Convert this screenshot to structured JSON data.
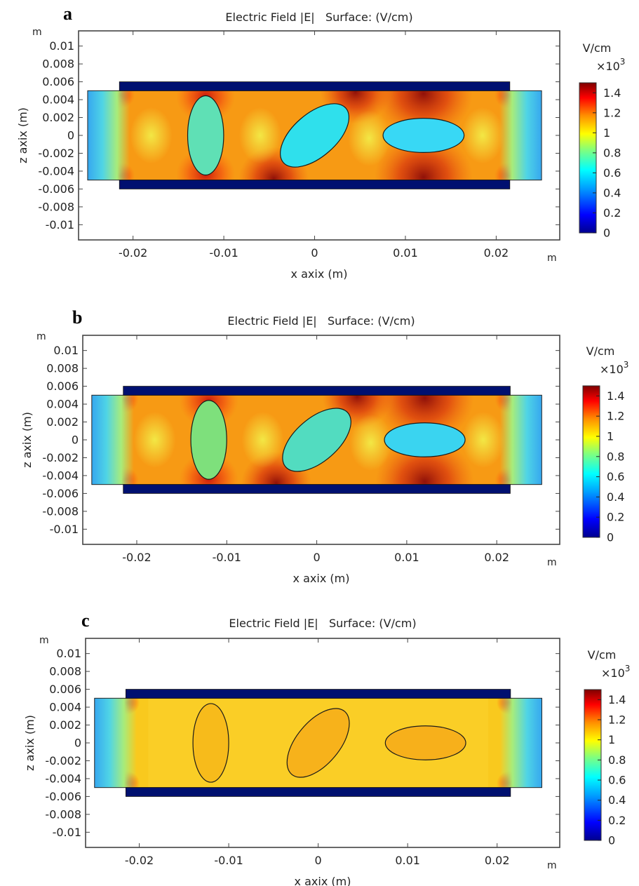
{
  "panels": [
    {
      "letter": "a",
      "title": "Electric Field |E|   Surface: (V/cm)",
      "colorbar": {
        "unit": "V/cm",
        "multiplier_base": "×10",
        "multiplier_exp": "3",
        "ticks": [
          "1.4",
          "1.2",
          "1",
          "0.8",
          "0.6",
          "0.4",
          "0.2",
          "0"
        ]
      },
      "inclusion_fill": [
        "#5fe0b5",
        "#2fe0ec",
        "#38d8f5"
      ]
    },
    {
      "letter": "b",
      "title": "Electric Field |E|   Surface: (V/cm)",
      "colorbar": {
        "unit": "V/cm",
        "multiplier_base": "×10",
        "multiplier_exp": "3",
        "ticks": [
          "1.4",
          "1.2",
          "1",
          "0.8",
          "0.6",
          "0.4",
          "0.2",
          "0"
        ]
      },
      "inclusion_fill": [
        "#7ee07c",
        "#52dcc0",
        "#3ad4f0"
      ]
    },
    {
      "letter": "c",
      "title": "Electric Field |E|   Surface: (V/cm)",
      "colorbar": {
        "unit": "V/cm",
        "multiplier_base": "×10",
        "multiplier_exp": "3",
        "ticks": [
          "1.4",
          "1.2",
          "1",
          "0.8",
          "0.6",
          "0.4",
          "0.2",
          "0"
        ]
      },
      "inclusion_fill": [
        "#f7bb1b",
        "#f7b21b",
        "#f7b01b"
      ]
    }
  ],
  "chart_data": [
    {
      "type": "heatmap",
      "title": "Electric Field |E|   Surface: (V/cm)",
      "xlabel": "x axix (m)",
      "ylabel": "z axix (m)",
      "x_unit": "m",
      "y_unit": "m",
      "xlim": [
        -0.026,
        0.027
      ],
      "ylim": [
        -0.0117,
        0.0117
      ],
      "xticks": [
        -0.02,
        -0.01,
        0,
        0.01,
        0.02
      ],
      "xtick_labels": [
        "-0.02",
        "-0.01",
        "0",
        "0.01",
        "0.02"
      ],
      "yticks": [
        0.01,
        0.008,
        0.006,
        0.004,
        0.002,
        0,
        -0.002,
        -0.004,
        -0.006,
        -0.008,
        -0.01
      ],
      "ytick_labels": [
        "0.01",
        "0.008",
        "0.006",
        "0.004",
        "0.002",
        "0",
        "-0.002",
        "-0.004",
        "-0.006",
        "-0.008",
        "-0.01"
      ],
      "colorbar_range": [
        0,
        1500
      ],
      "domain": {
        "x": [
          -0.025,
          0.025
        ],
        "z": [
          -0.005,
          0.005
        ]
      },
      "electrodes": [
        {
          "x": [
            -0.0215,
            0.0215
          ],
          "z": [
            0.005,
            0.006
          ]
        },
        {
          "x": [
            -0.0215,
            0.0215
          ],
          "z": [
            -0.006,
            -0.005
          ]
        }
      ],
      "inclusions": [
        {
          "cx": -0.012,
          "cz": 0,
          "a": 0.002,
          "b": 0.0044,
          "angle_deg": 0
        },
        {
          "cx": 0,
          "cz": 0,
          "a": 0.0024,
          "b": 0.0046,
          "angle_deg": 49
        },
        {
          "cx": 0.012,
          "cz": 0,
          "a": 0.0045,
          "b": 0.0019,
          "angle_deg": 0
        }
      ]
    },
    {
      "type": "heatmap",
      "title": "Electric Field |E|   Surface: (V/cm)",
      "xlabel": "x axix (m)",
      "ylabel": "z axix (m)",
      "x_unit": "m",
      "y_unit": "m",
      "xlim": [
        -0.026,
        0.027
      ],
      "ylim": [
        -0.0117,
        0.0117
      ],
      "xticks": [
        -0.02,
        -0.01,
        0,
        0.01,
        0.02
      ],
      "xtick_labels": [
        "-0.02",
        "-0.01",
        "0",
        "0.01",
        "0.02"
      ],
      "yticks": [
        0.01,
        0.008,
        0.006,
        0.004,
        0.002,
        0,
        -0.002,
        -0.004,
        -0.006,
        -0.008,
        -0.01
      ],
      "ytick_labels": [
        "0.01",
        "0.008",
        "0.006",
        "0.004",
        "0.002",
        "0",
        "-0.002",
        "-0.004",
        "-0.006",
        "-0.008",
        "-0.01"
      ],
      "colorbar_range": [
        0,
        1500
      ],
      "domain": {
        "x": [
          -0.025,
          0.025
        ],
        "z": [
          -0.005,
          0.005
        ]
      },
      "electrodes": [
        {
          "x": [
            -0.0215,
            0.0215
          ],
          "z": [
            0.005,
            0.006
          ]
        },
        {
          "x": [
            -0.0215,
            0.0215
          ],
          "z": [
            -0.006,
            -0.005
          ]
        }
      ],
      "inclusions": [
        {
          "cx": -0.012,
          "cz": 0,
          "a": 0.002,
          "b": 0.0044,
          "angle_deg": 0
        },
        {
          "cx": 0,
          "cz": 0,
          "a": 0.0024,
          "b": 0.0046,
          "angle_deg": 49
        },
        {
          "cx": 0.012,
          "cz": 0,
          "a": 0.0045,
          "b": 0.0019,
          "angle_deg": 0
        }
      ]
    },
    {
      "type": "heatmap",
      "title": "Electric Field |E|   Surface: (V/cm)",
      "xlabel": "x axix (m)",
      "ylabel": "z axix (m)",
      "x_unit": "m",
      "y_unit": "m",
      "xlim": [
        -0.026,
        0.027
      ],
      "ylim": [
        -0.0117,
        0.0117
      ],
      "xticks": [
        -0.02,
        -0.01,
        0,
        0.01,
        0.02
      ],
      "xtick_labels": [
        "-0.02",
        "-0.01",
        "0",
        "0.01",
        "0.02"
      ],
      "yticks": [
        0.01,
        0.008,
        0.006,
        0.004,
        0.002,
        0,
        -0.002,
        -0.004,
        -0.006,
        -0.008,
        -0.01
      ],
      "ytick_labels": [
        "0.01",
        "0.008",
        "0.006",
        "0.004",
        "0.002",
        "0",
        "-0.002",
        "-0.004",
        "-0.006",
        "-0.008",
        "-0.01"
      ],
      "colorbar_range": [
        0,
        1500
      ],
      "domain": {
        "x": [
          -0.025,
          0.025
        ],
        "z": [
          -0.005,
          0.005
        ]
      },
      "electrodes": [
        {
          "x": [
            -0.0215,
            0.0215
          ],
          "z": [
            0.005,
            0.006
          ]
        },
        {
          "x": [
            -0.0215,
            0.0215
          ],
          "z": [
            -0.006,
            -0.005
          ]
        }
      ],
      "inclusions": [
        {
          "cx": -0.012,
          "cz": 0,
          "a": 0.002,
          "b": 0.0044,
          "angle_deg": 0
        },
        {
          "cx": 0,
          "cz": 0,
          "a": 0.0024,
          "b": 0.0046,
          "angle_deg": 40
        },
        {
          "cx": 0.012,
          "cz": 0,
          "a": 0.0045,
          "b": 0.0019,
          "angle_deg": 0
        }
      ]
    }
  ]
}
